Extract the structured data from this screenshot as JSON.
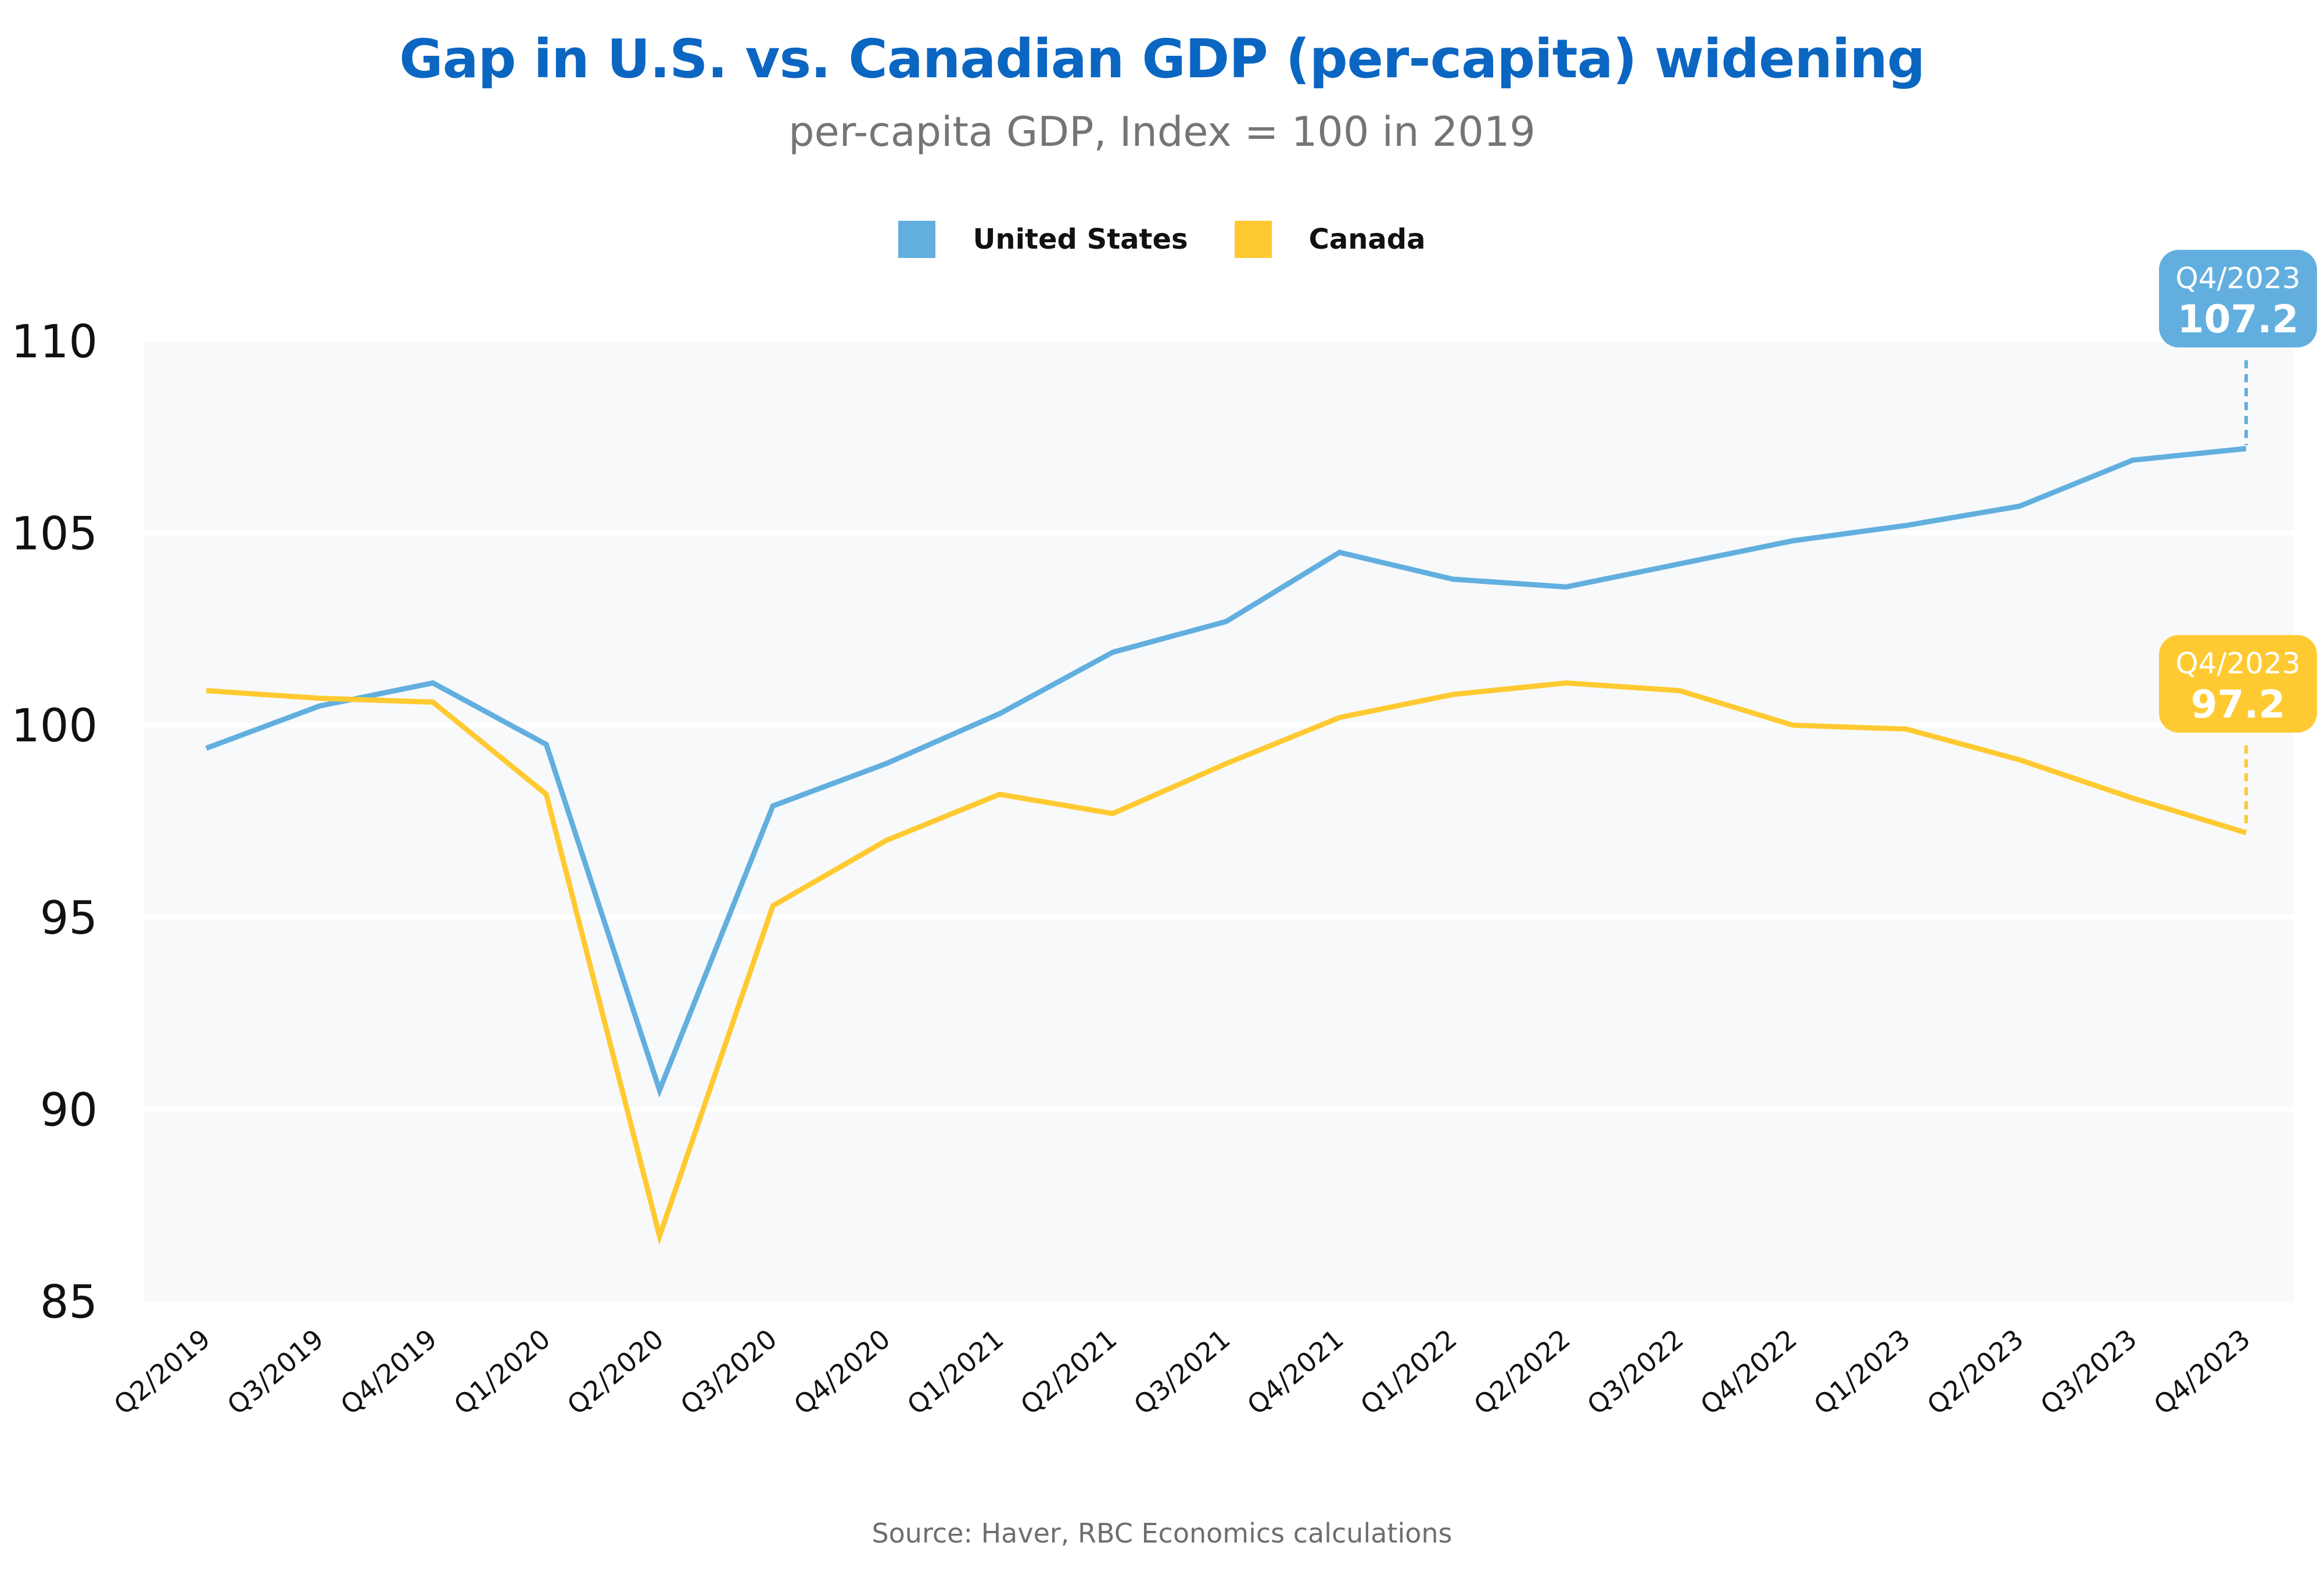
{
  "chart_data": {
    "type": "line",
    "title": "Gap in U.S. vs. Canadian GDP (per-capita) widening",
    "subtitle": "per-capita GDP, Index = 100 in 2019",
    "xlabel": "",
    "ylabel": "",
    "ylim": [
      85,
      110
    ],
    "yticks": [
      "110",
      "105",
      "100",
      "95",
      "90",
      "85"
    ],
    "ytick_values": [
      110,
      105,
      100,
      95,
      90,
      85
    ],
    "grid": true,
    "legend_position": "top-center",
    "categories": [
      "Q2/2019",
      "Q3/2019",
      "Q4/2019",
      "Q1/2020",
      "Q2/2020",
      "Q3/2020",
      "Q4/2020",
      "Q1/2021",
      "Q2/2021",
      "Q3/2021",
      "Q4/2021",
      "Q1/2022",
      "Q2/2022",
      "Q3/2022",
      "Q4/2022",
      "Q1/2023",
      "Q2/2023",
      "Q3/2023",
      "Q4/2023"
    ],
    "series": [
      {
        "name": "United States",
        "color": "#62afdf",
        "values": [
          99.4,
          100.5,
          101.1,
          99.5,
          90.5,
          97.9,
          99.0,
          100.3,
          101.9,
          102.7,
          104.5,
          103.8,
          103.6,
          104.2,
          104.8,
          105.2,
          105.7,
          106.9,
          107.2
        ]
      },
      {
        "name": "Canada",
        "color": "#ffca31",
        "values": [
          100.9,
          100.7,
          100.6,
          98.2,
          86.7,
          95.3,
          97.0,
          98.2,
          97.7,
          99.0,
          100.2,
          100.8,
          101.1,
          100.9,
          100.0,
          99.9,
          99.1,
          98.1,
          97.2
        ]
      }
    ],
    "annotations": [
      {
        "series": "United States",
        "period": "Q4/2023",
        "value": "107.2",
        "color": "#62afdf"
      },
      {
        "series": "Canada",
        "period": "Q4/2023",
        "value": "97.2",
        "color": "#ffca31"
      }
    ]
  },
  "legend": [
    {
      "label": "United States",
      "color": "#62afdf"
    },
    {
      "label": "Canada",
      "color": "#ffca31"
    }
  ],
  "footer": {
    "source": "Source: Haver, RBC Economics calculations"
  },
  "colors": {
    "title": "#0b66c2",
    "plot_background": "#f7f9fb",
    "gridline": "#ffffff"
  }
}
